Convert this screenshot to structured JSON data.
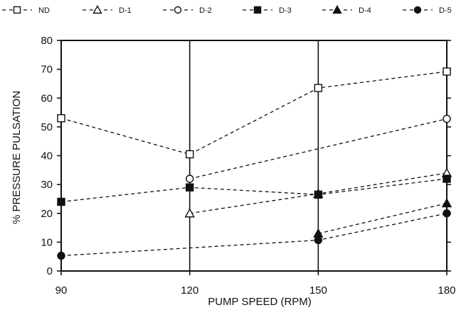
{
  "chart_data": {
    "type": "line",
    "xlabel": "PUMP SPEED (RPM)",
    "ylabel": "% PRESSURE PULSATION",
    "x": [
      90,
      120,
      150,
      180
    ],
    "xlim": [
      90,
      180
    ],
    "ylim": [
      0,
      80
    ],
    "xticks": [
      90,
      120,
      150,
      180
    ],
    "yticks": [
      0,
      10,
      20,
      30,
      40,
      50,
      60,
      70,
      80
    ],
    "grid": false,
    "vertical_reference_lines": [
      120,
      150
    ],
    "legend": {
      "placement": "top",
      "entries": [
        "ND",
        "D-1",
        "D-2",
        "D-3",
        "D-4",
        "D-5"
      ]
    },
    "series": [
      {
        "name": "ND",
        "marker": "open-square",
        "points": [
          {
            "x": 90,
            "y": 53
          },
          {
            "x": 120,
            "y": 40.5
          },
          {
            "x": 150,
            "y": 63.5
          },
          {
            "x": 180,
            "y": 69.2
          }
        ]
      },
      {
        "name": "D-1",
        "marker": "open-triangle",
        "points": [
          {
            "x": 120,
            "y": 20
          },
          {
            "x": 150,
            "y": 26.8
          },
          {
            "x": 180,
            "y": 34
          }
        ]
      },
      {
        "name": "D-2",
        "marker": "open-circle",
        "points": [
          {
            "x": 120,
            "y": 32
          },
          {
            "x": 180,
            "y": 52.8
          }
        ]
      },
      {
        "name": "D-3",
        "marker": "filled-square",
        "points": [
          {
            "x": 90,
            "y": 24
          },
          {
            "x": 120,
            "y": 29
          },
          {
            "x": 150,
            "y": 26.5
          },
          {
            "x": 180,
            "y": 32
          }
        ]
      },
      {
        "name": "D-4",
        "marker": "filled-triangle",
        "points": [
          {
            "x": 150,
            "y": 13
          },
          {
            "x": 180,
            "y": 23.5
          }
        ]
      },
      {
        "name": "D-5",
        "marker": "filled-circle",
        "points": [
          {
            "x": 90,
            "y": 5.3
          },
          {
            "x": 150,
            "y": 10.7
          },
          {
            "x": 180,
            "y": 20
          }
        ]
      }
    ]
  }
}
